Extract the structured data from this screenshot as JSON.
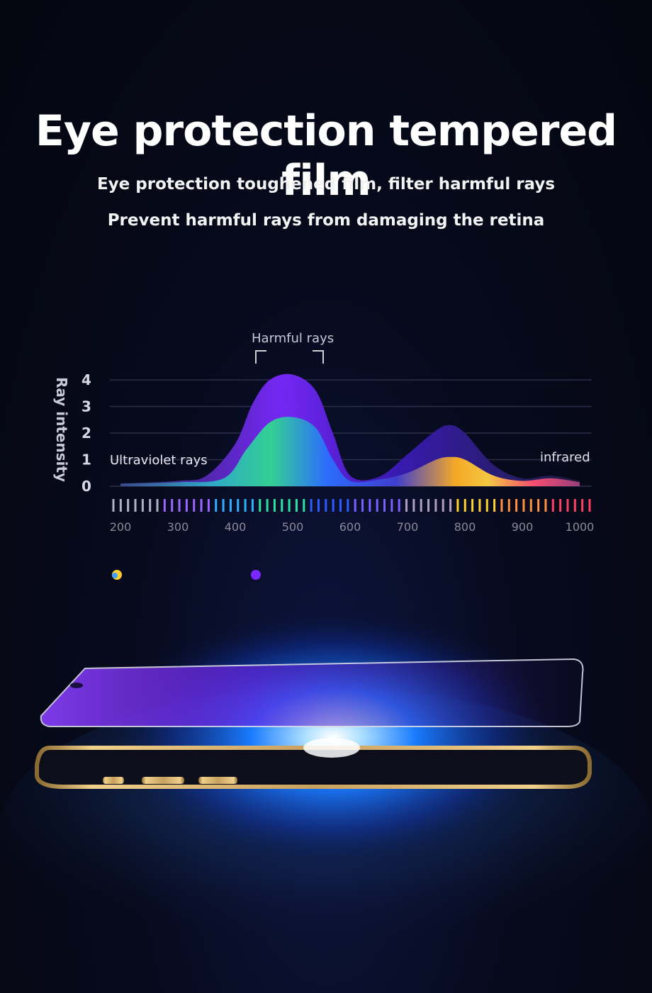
{
  "header": {
    "title": "Eye protection tempered film",
    "subtitle_1": "Eye protection toughened film, filter harmful rays",
    "subtitle_2": "Prevent harmful rays from damaging the retina"
  },
  "chart_data": {
    "type": "area",
    "ylabel": "Ray intensity",
    "y_ticks": [
      "4",
      "3",
      "2",
      "1",
      "0"
    ],
    "ylim": [
      0,
      4
    ],
    "x_ticks": [
      "200",
      "300",
      "400",
      "500",
      "600",
      "700",
      "800",
      "900",
      "1000"
    ],
    "xlim": [
      200,
      1000
    ],
    "annotations": {
      "harmful": "Harmful rays",
      "uv": "Ultraviolet rays",
      "ir": "infrared"
    },
    "grid": true,
    "series": [
      {
        "color": "#6a1cf0",
        "x": [
          200,
          300,
          350,
          400,
          430,
          460,
          500,
          540,
          570,
          600,
          650,
          700,
          750,
          775,
          800,
          850,
          900,
          950,
          1000
        ],
        "values": [
          0.1,
          0.2,
          0.4,
          1.6,
          3.1,
          4.0,
          4.2,
          3.6,
          2.0,
          0.4,
          0.35,
          1.2,
          2.1,
          2.3,
          2.0,
          0.8,
          0.3,
          0.4,
          0.2
        ]
      },
      {
        "color": "#18c8e0",
        "x": [
          200,
          300,
          380,
          420,
          460,
          500,
          540,
          570,
          600,
          650,
          700,
          750,
          775,
          800,
          850,
          900,
          950,
          1000
        ],
        "values": [
          0.1,
          0.15,
          0.3,
          1.4,
          2.4,
          2.6,
          2.2,
          1.0,
          0.2,
          0.25,
          0.5,
          1.0,
          1.1,
          1.0,
          0.4,
          0.2,
          0.3,
          0.15
        ]
      }
    ],
    "colors": {
      "spectrum": [
        "#b0b0c8",
        "#9a66ff",
        "#2fb0ff",
        "#30e0a0",
        "#2a5cff",
        "#7a60ff",
        "#b0a0c0",
        "#ffd030",
        "#ff9040",
        "#ff4060"
      ]
    }
  }
}
